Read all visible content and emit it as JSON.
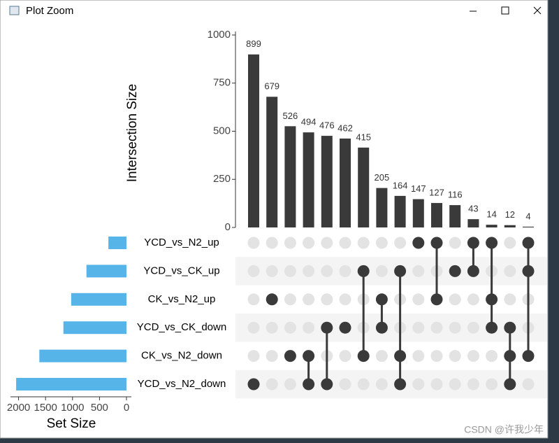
{
  "window": {
    "title": "Plot Zoom"
  },
  "watermark": "CSDN @许我少年",
  "chart_data": {
    "type": "upset",
    "ylabel": "Intersection Size",
    "xlabel": "Set Size",
    "values": [
      899,
      679,
      526,
      494,
      476,
      462,
      415,
      205,
      164,
      147,
      127,
      116,
      43,
      14,
      12,
      4
    ],
    "members": [
      [
        5
      ],
      [
        2
      ],
      [
        4
      ],
      [
        4,
        5
      ],
      [
        3,
        5
      ],
      [
        3
      ],
      [
        1,
        4
      ],
      [
        2,
        3
      ],
      [
        1,
        4,
        5
      ],
      [
        0
      ],
      [
        0,
        2
      ],
      [
        1
      ],
      [
        0,
        1
      ],
      [
        0,
        2,
        3
      ],
      [
        3,
        4,
        5
      ],
      [
        0,
        1,
        4
      ]
    ],
    "color": "#3a3a3a",
    "ylim": [
      0,
      1000
    ],
    "yticks": [
      0,
      250,
      500,
      750,
      1000
    ],
    "sets": [
      "YCD_vs_N2_up",
      "YCD_vs_CK_up",
      "CK_vs_N2_up",
      "YCD_vs_CK_down",
      "CK_vs_N2_down",
      "YCD_vs_N2_down"
    ],
    "set_sizes": [
      335,
      742,
      1025,
      1169,
      1615,
      2045
    ],
    "set_color": "#56b4e9",
    "xlim": [
      0,
      2150
    ],
    "xticks": [
      0,
      500,
      1000,
      1500,
      2000
    ]
  }
}
